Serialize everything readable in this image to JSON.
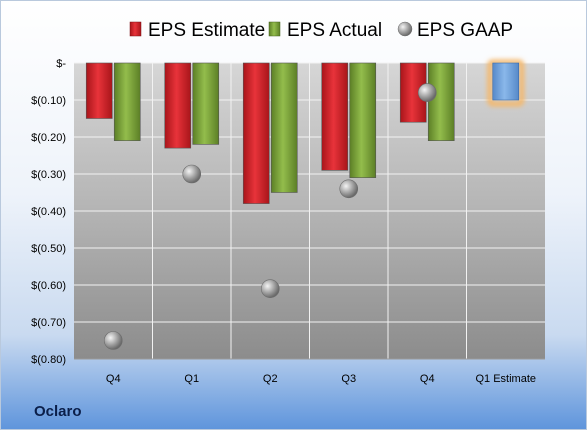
{
  "company": "Oclaro",
  "chart_data": {
    "type": "bar",
    "categories": [
      "Q4",
      "Q1",
      "Q2",
      "Q3",
      "Q4",
      "Q1 Estimate"
    ],
    "series": [
      {
        "name": "EPS Estimate",
        "values": [
          -0.15,
          -0.23,
          -0.38,
          -0.29,
          -0.16,
          null
        ],
        "color": "#d42026"
      },
      {
        "name": "EPS Actual",
        "values": [
          -0.21,
          -0.22,
          -0.35,
          -0.31,
          -0.21,
          null
        ],
        "color": "#7aa336"
      },
      {
        "name": "EPS GAAP",
        "values": [
          -0.75,
          -0.3,
          -0.61,
          -0.34,
          -0.08,
          null
        ],
        "color": "#a8a8a8"
      }
    ],
    "estimate_bar": {
      "category": "Q1 Estimate",
      "value": -0.1,
      "color": "#6fa3dc",
      "highlight": "#f5b86b"
    },
    "y_ticks": [
      {
        "value": 0,
        "label": "$-"
      },
      {
        "value": -0.1,
        "label": "$(0.10)"
      },
      {
        "value": -0.2,
        "label": "$(0.20)"
      },
      {
        "value": -0.3,
        "label": "$(0.30)"
      },
      {
        "value": -0.4,
        "label": "$(0.40)"
      },
      {
        "value": -0.5,
        "label": "$(0.50)"
      },
      {
        "value": -0.6,
        "label": "$(0.60)"
      },
      {
        "value": -0.7,
        "label": "$(0.70)"
      },
      {
        "value": -0.8,
        "label": "$(0.80)"
      }
    ],
    "ylim": [
      -0.8,
      0
    ],
    "grid": true,
    "legend_position": "top"
  }
}
